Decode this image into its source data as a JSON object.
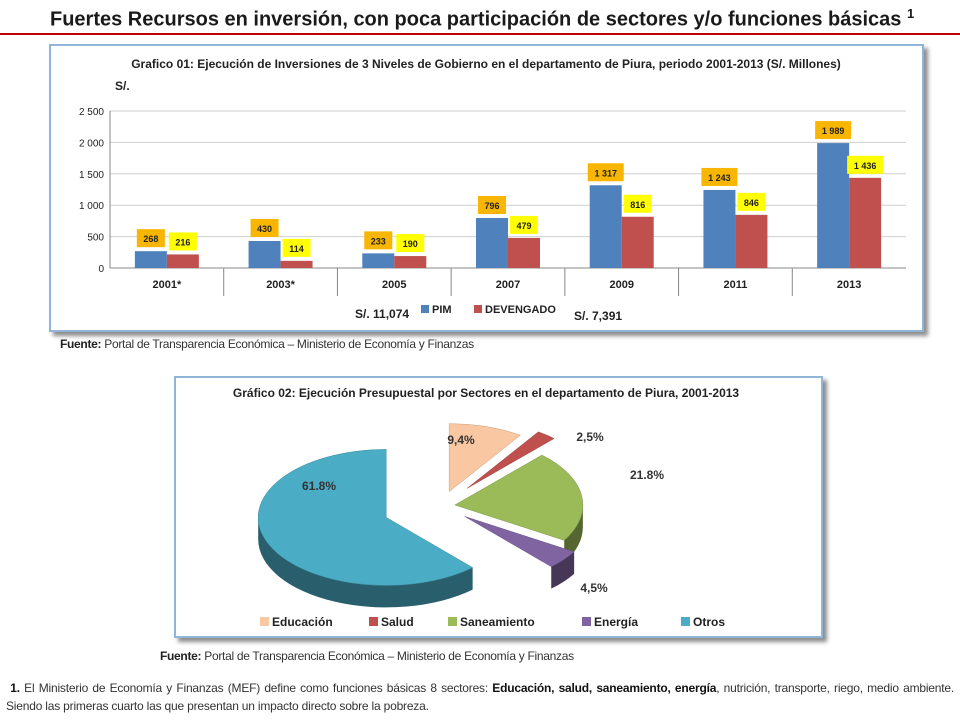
{
  "page": {
    "title": "Fuertes Recursos en inversión, con poca participación de sectores y/o funciones básicas",
    "title_note": "1",
    "accent_color": "#c00000",
    "source1_label": "Fuente:",
    "source1_text": "Portal de Transparencia Económica – Ministerio de Economía y Finanzas",
    "source2_label": "Fuente:",
    "source2_text": "Portal de Transparencia Económica – Ministerio de Economía y Finanzas",
    "footnote_number": "1.",
    "footnote_text_1": "El Ministerio de Economía y Finanzas (MEF) define como funciones básicas 8 sectores:",
    "footnote_bold": "Educación, salud, saneamiento, energía",
    "footnote_text_2": ", nutrición, transporte, riego, medio ambiente. Siendo las primeras cuarto las que presentan un impacto directo sobre la pobreza."
  },
  "chart_data": [
    {
      "type": "bar",
      "title": "Grafico 01: Ejecución de Inversiones de 3 Niveles de Gobierno en el departamento de Piura, periodo 2001-2013 (S/. Millones)",
      "ylabel": "S/.",
      "categories": [
        "2001*",
        "2003*",
        "2005",
        "2007",
        "2009",
        "2011",
        "2013"
      ],
      "series": [
        {
          "name": "PIM",
          "values": [
            268,
            430,
            233,
            796,
            1317,
            1243,
            1989
          ],
          "labels": [
            "268",
            "430",
            "233",
            "796",
            "1 317",
            "1 243",
            "1 989"
          ],
          "color": "#4f81bd",
          "label_bg": "#f8b600"
        },
        {
          "name": "DEVENGADO",
          "values": [
            216,
            114,
            190,
            479,
            816,
            846,
            1436
          ],
          "labels": [
            "216",
            "114",
            "190",
            "479",
            "816",
            "846",
            "1 436"
          ],
          "color": "#c0504d",
          "label_bg": "#ffff00"
        }
      ],
      "ylim": [
        0,
        2500
      ],
      "yticks": [
        0,
        500,
        1000,
        1500,
        2000,
        2500
      ],
      "ytick_labels": [
        "0",
        "500",
        "1 000",
        "1 500",
        "2 000",
        "2 500"
      ],
      "grid": true,
      "legend_position": "bottom",
      "annotations": [
        "S/. 11,074",
        "S/. 7,391"
      ]
    },
    {
      "type": "pie",
      "title": "Gráfico 02: Ejecución Presupuestal por Sectores en el departamento de Piura, 2001-2013",
      "categories": [
        "Educación",
        "Salud",
        "Saneamiento",
        "Energía",
        "Otros"
      ],
      "values": [
        9.4,
        2.5,
        21.8,
        4.5,
        61.8
      ],
      "labels": [
        "9,4%",
        "2,5%",
        "21.8%",
        "4,5%",
        "61.8%"
      ],
      "colors": [
        "#f9c8a2",
        "#c0504d",
        "#9bbb59",
        "#8064a2",
        "#4bacc6"
      ],
      "style": "3d-exploded",
      "legend_position": "bottom"
    }
  ]
}
